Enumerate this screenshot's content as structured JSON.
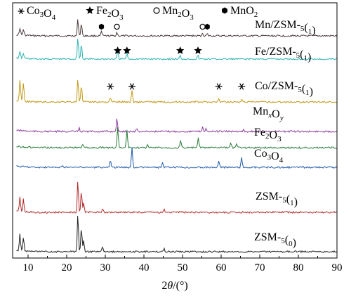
{
  "chart_data": {
    "type": "line",
    "title": "",
    "xlabel": "2θ/(°)",
    "ylabel": "",
    "xlim": [
      6,
      90
    ],
    "xticks": [
      10,
      20,
      30,
      40,
      50,
      60,
      70,
      80,
      90
    ],
    "grid": false,
    "legend": {
      "placement": "top",
      "entries": [
        {
          "symbol": "asterisk",
          "label": "Co3O4"
        },
        {
          "symbol": "star",
          "label": "Fe2O3"
        },
        {
          "symbol": "open-circle",
          "label": "Mn2O3"
        },
        {
          "symbol": "filled-hexagon",
          "label": "MnO2"
        }
      ]
    },
    "series": [
      {
        "name": "Mn/ZSM-5(1)",
        "color": "#4a3a3a",
        "peaks": [
          [
            7.9,
            10
          ],
          [
            8.8,
            8
          ],
          [
            22.9,
            24
          ],
          [
            23.8,
            18
          ],
          [
            29,
            6
          ],
          [
            33,
            5
          ],
          [
            55.2,
            4
          ],
          [
            56.4,
            3
          ]
        ]
      },
      {
        "name": "Fe/ZSM-5(1)",
        "color": "#2fb3b3",
        "peaks": [
          [
            7.9,
            9
          ],
          [
            8.8,
            7
          ],
          [
            22.9,
            32
          ],
          [
            23.8,
            22
          ],
          [
            33.2,
            11
          ],
          [
            35.6,
            10
          ],
          [
            49.4,
            5
          ],
          [
            54,
            5
          ]
        ]
      },
      {
        "name": "Co/ZSM-5(1)",
        "color": "#c29a1a",
        "peaks": [
          [
            7.9,
            30
          ],
          [
            8.8,
            26
          ],
          [
            22.9,
            34
          ],
          [
            23.8,
            24
          ],
          [
            31.3,
            6
          ],
          [
            36.9,
            16
          ],
          [
            59.4,
            4
          ],
          [
            65.3,
            4
          ]
        ]
      },
      {
        "name": "MnxOy",
        "color": "#8a3a9a",
        "peaks": [
          [
            23.2,
            5
          ],
          [
            33,
            19
          ],
          [
            38.2,
            4
          ],
          [
            55.2,
            7
          ],
          [
            56.1,
            4
          ],
          [
            65.8,
            3
          ]
        ]
      },
      {
        "name": "Fe2O3",
        "color": "#2a7a3a",
        "peaks": [
          [
            24.1,
            6
          ],
          [
            33.2,
            30
          ],
          [
            35.6,
            26
          ],
          [
            40.9,
            4
          ],
          [
            49.5,
            11
          ],
          [
            54.1,
            14
          ],
          [
            62.5,
            6
          ],
          [
            64,
            6
          ]
        ]
      },
      {
        "name": "Co3O4",
        "color": "#1f5aa8",
        "peaks": [
          [
            19,
            3
          ],
          [
            31.3,
            10
          ],
          [
            36.9,
            28
          ],
          [
            44.8,
            6
          ],
          [
            59.4,
            10
          ],
          [
            65.3,
            14
          ]
        ]
      },
      {
        "name": "ZSM-5(1)",
        "color": "#b02a2a",
        "peaks": [
          [
            7.9,
            22
          ],
          [
            8.8,
            18
          ],
          [
            22.9,
            46
          ],
          [
            23.8,
            30
          ],
          [
            24.4,
            14
          ],
          [
            29.3,
            6
          ],
          [
            45.2,
            4
          ]
        ]
      },
      {
        "name": "ZSM-5(0)",
        "color": "#222222",
        "peaks": [
          [
            7.9,
            24
          ],
          [
            8.8,
            20
          ],
          [
            22.9,
            54
          ],
          [
            23.8,
            34
          ],
          [
            24.4,
            16
          ],
          [
            29.3,
            8
          ],
          [
            45.2,
            5
          ]
        ]
      }
    ]
  },
  "labels": {
    "legend_co3o4": "Co3O4",
    "legend_fe2o3": "Fe2O3",
    "legend_mn2o3": "Mn2O3",
    "legend_mno2": "MnO2"
  }
}
